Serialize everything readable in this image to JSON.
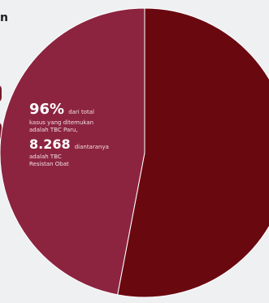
{
  "edge_text": "n",
  "chart_data": {
    "type": "pie",
    "slices": [
      {
        "label": "",
        "value": 53,
        "color": "#6a0810"
      },
      {
        "label": "",
        "value": 47,
        "color": "#8c2440"
      }
    ],
    "start_angle_deg": 0,
    "legend": "none"
  },
  "annotation": {
    "stat1_value": "96%",
    "stat1_text_line1": "dari total",
    "stat1_text_line2": "kasus yang ditemukan",
    "stat1_text_line3": "adalah TBC Paru,",
    "stat2_value": "8.268",
    "stat2_text_line1": "diantaranya",
    "stat2_text_line2": "adalah TBC",
    "stat2_text_line3": "Resistan Obat"
  }
}
